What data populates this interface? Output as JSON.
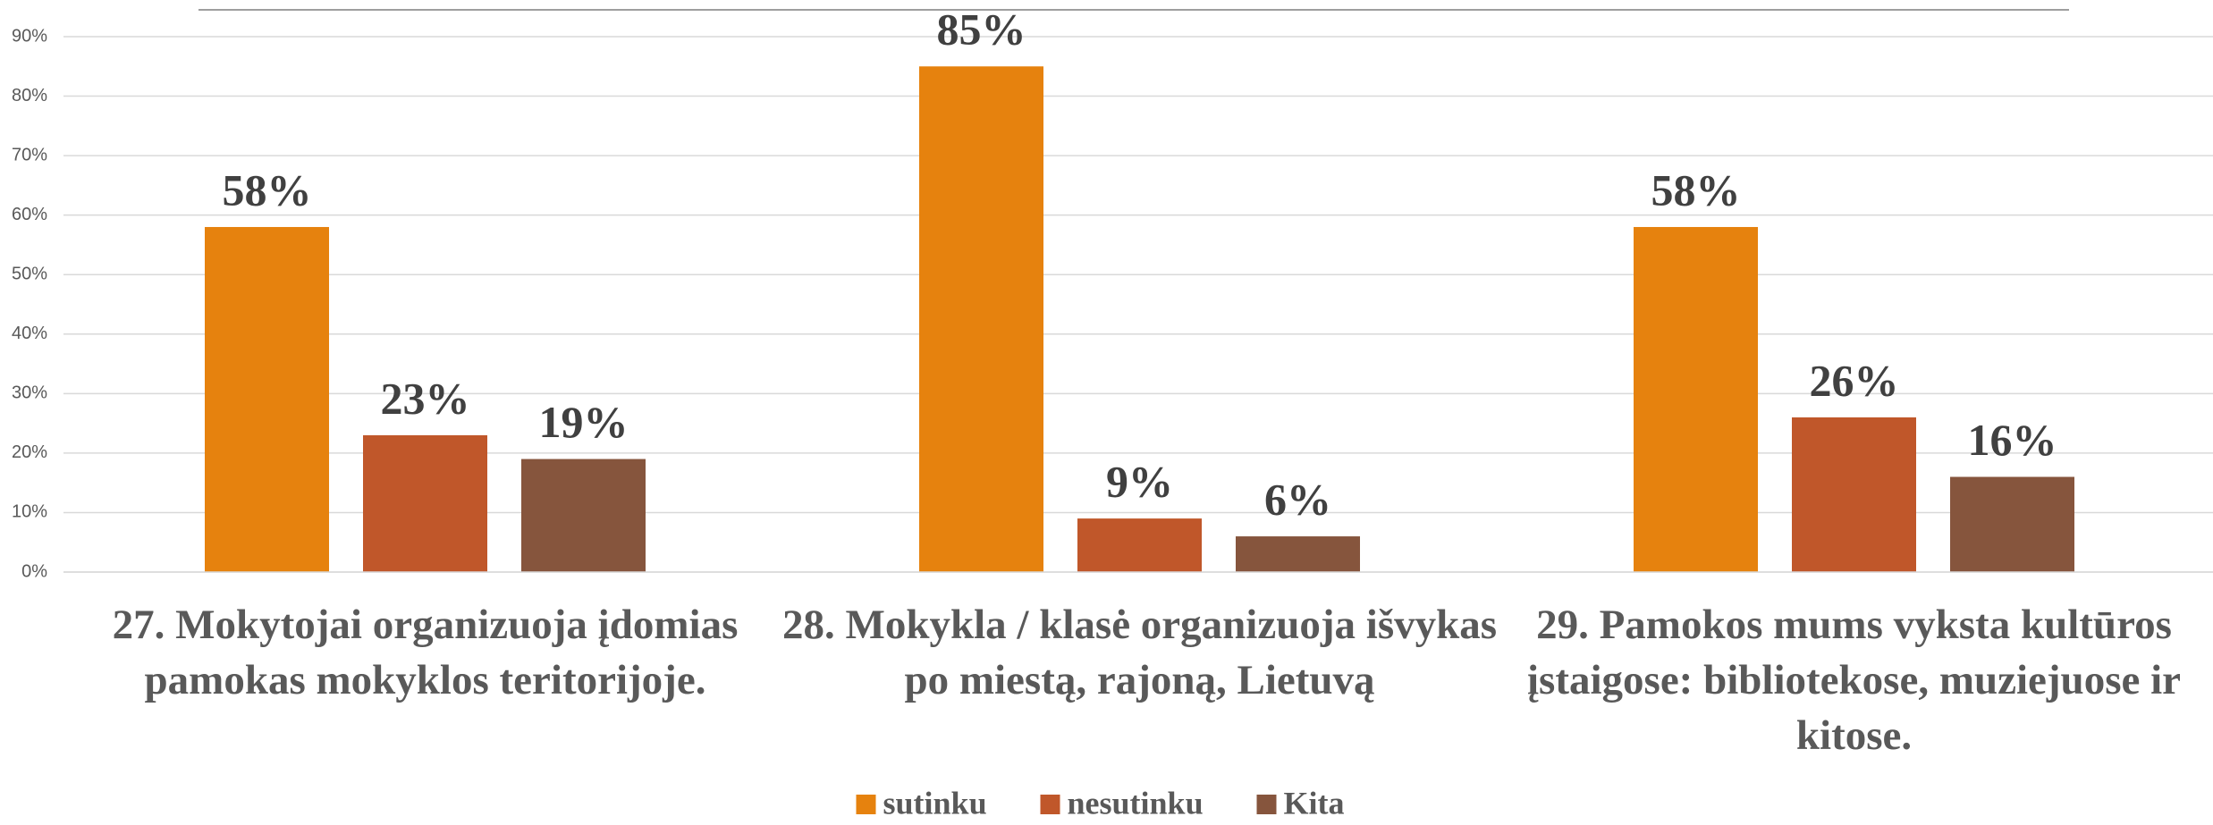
{
  "chart_data": {
    "type": "bar",
    "categories": [
      "27. Mokytojai organizuoja įdomias pamokas mokyklos teritorijoje.",
      "28. Mokykla / klasė organizuoja išvykas po miestą, rajoną, Lietuvą",
      "29. Pamokos mums vyksta kultūros įstaigose: bibliotekose, muziejuose ir kitose."
    ],
    "series": [
      {
        "name": "sutinku",
        "color": "#e6820e",
        "values": [
          58,
          85,
          58
        ],
        "value_labels": [
          "58%",
          "85%",
          "58%"
        ]
      },
      {
        "name": "nesutinku",
        "color": "#c0572a",
        "values": [
          23,
          9,
          26
        ],
        "value_labels": [
          "23%",
          "9%",
          "26%"
        ]
      },
      {
        "name": "Kita",
        "color": "#86553d",
        "values": [
          19,
          6,
          16
        ],
        "value_labels": [
          "19%",
          "6%",
          "16%"
        ]
      }
    ],
    "ylim": [
      0,
      90
    ],
    "yticks": [
      {
        "value": 0,
        "label": "0%"
      },
      {
        "value": 10,
        "label": "10%"
      },
      {
        "value": 20,
        "label": "20%"
      },
      {
        "value": 30,
        "label": "30%"
      },
      {
        "value": 40,
        "label": "40%"
      },
      {
        "value": 50,
        "label": "50%"
      },
      {
        "value": 60,
        "label": "60%"
      },
      {
        "value": 70,
        "label": "70%"
      },
      {
        "value": 80,
        "label": "80%"
      },
      {
        "value": 90,
        "label": "90%"
      }
    ],
    "grid": true,
    "legend": "bottom"
  }
}
